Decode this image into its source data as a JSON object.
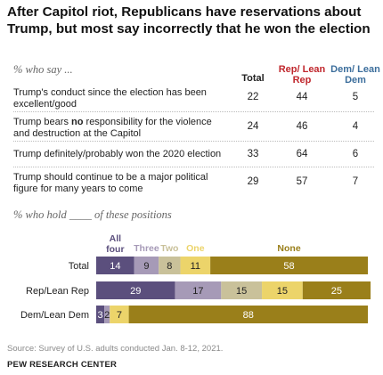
{
  "title": "After Capitol riot, Republicans have reservations about Trump, but most say incorrectly that he won the election",
  "table": {
    "subhead": "% who say ...",
    "columns": [
      {
        "label": "Total",
        "color": "#111111"
      },
      {
        "label": "Rep/ Lean Rep",
        "color": "#c0272d"
      },
      {
        "label": "Dem/ Lean Dem",
        "color": "#3c6e9c"
      }
    ],
    "rows": [
      {
        "label": "Trump's conduct since the election has been excellent/good",
        "values": [
          "22",
          "44",
          "5"
        ]
      },
      {
        "label_pre": "Trump bears ",
        "label_bold": "no",
        "label_post": " responsibility for the violence and destruction at the Capitol",
        "values": [
          "24",
          "46",
          "4"
        ]
      },
      {
        "label": "Trump definitely/probably won the 2020 election",
        "values": [
          "33",
          "64",
          "6"
        ]
      },
      {
        "label": "Trump should continue to be a major political figure for many years to come",
        "values": [
          "29",
          "57",
          "7"
        ]
      }
    ]
  },
  "chart_data": {
    "type": "bar",
    "subtype": "stacked-horizontal",
    "subhead": "% who hold ____ of these positions",
    "categories": [
      "Total",
      "Rep/Lean Rep",
      "Dem/Lean Dem"
    ],
    "series": [
      {
        "name": "All four",
        "color": "#5b4f7d",
        "values": [
          14,
          29,
          3
        ]
      },
      {
        "name": "Three",
        "color": "#a69ab7",
        "values": [
          9,
          17,
          2
        ]
      },
      {
        "name": "Two",
        "color": "#c9c19a",
        "values": [
          8,
          15,
          0
        ]
      },
      {
        "name": "One",
        "color": "#ecd46a",
        "values": [
          11,
          15,
          7
        ]
      },
      {
        "name": "None",
        "color": "#9a7f1a",
        "values": [
          58,
          25,
          88
        ]
      }
    ],
    "legend_position": "top",
    "xlim": [
      0,
      100
    ]
  },
  "source": "Source: Survey of U.S. adults conducted Jan. 8-12, 2021.",
  "brand": "PEW RESEARCH CENTER"
}
